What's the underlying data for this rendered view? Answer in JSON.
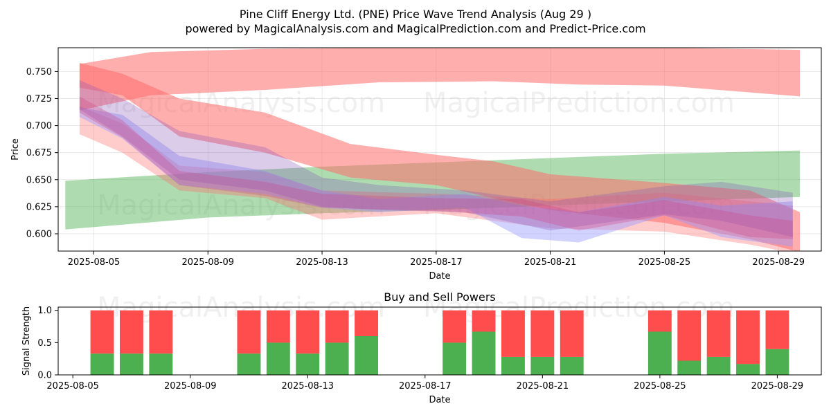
{
  "figure": {
    "title": "Pine Cliff Energy Ltd. (PNE) Price Wave Trend Analysis (Aug 29 )",
    "subtitle": "powered by MagicalAnalysis.com and MagicalPrediction.com and Predict-Price.com",
    "watermarks": [
      "MagicalAnalysis.com",
      "MagicalPrediction.com"
    ]
  },
  "chart_data": [
    {
      "type": "area",
      "name": "price-wave-trend",
      "xlabel": "Date",
      "ylabel": "Price",
      "ylim": [
        0.584,
        0.772
      ],
      "xlim": [
        "2025-08-03T18:00",
        "2025-08-30T12:00"
      ],
      "grid": true,
      "x_ticks": [
        "2025-08-05",
        "2025-08-09",
        "2025-08-13",
        "2025-08-17",
        "2025-08-21",
        "2025-08-25",
        "2025-08-29"
      ],
      "y_ticks": [
        0.6,
        0.625,
        0.65,
        0.675,
        0.7,
        0.725,
        0.75
      ],
      "y_tick_labels": [
        "0.600",
        "0.625",
        "0.650",
        "0.675",
        "0.700",
        "0.725",
        "0.750"
      ],
      "bands": [
        {
          "color": "#ff6b6b",
          "opacity": 0.55,
          "dates": [
            "2025-08-04T12:00",
            "2025-08-07",
            "2025-08-11",
            "2025-08-15",
            "2025-08-19",
            "2025-08-22",
            "2025-08-25",
            "2025-08-29T18:00"
          ],
          "upper": [
            0.757,
            0.768,
            0.771,
            0.772,
            0.772,
            0.772,
            0.772,
            0.77
          ],
          "lower": [
            0.714,
            0.728,
            0.733,
            0.74,
            0.741,
            0.738,
            0.737,
            0.727
          ]
        },
        {
          "color": "#4caf50",
          "opacity": 0.45,
          "dates": [
            "2025-08-04",
            "2025-08-09",
            "2025-08-13",
            "2025-08-17",
            "2025-08-21",
            "2025-08-25",
            "2025-08-29T18:00"
          ],
          "upper": [
            0.649,
            0.657,
            0.662,
            0.666,
            0.67,
            0.674,
            0.677
          ],
          "lower": [
            0.604,
            0.615,
            0.619,
            0.622,
            0.626,
            0.63,
            0.634
          ]
        },
        {
          "color": "#ff6b6b",
          "opacity": 0.55,
          "dates": [
            "2025-08-04T12:00",
            "2025-08-06",
            "2025-08-08",
            "2025-08-11",
            "2025-08-14",
            "2025-08-17",
            "2025-08-19",
            "2025-08-21",
            "2025-08-25",
            "2025-08-28",
            "2025-08-29T18:00"
          ],
          "upper": [
            0.758,
            0.748,
            0.725,
            0.712,
            0.683,
            0.673,
            0.667,
            0.655,
            0.647,
            0.64,
            0.62
          ],
          "lower": [
            0.735,
            0.728,
            0.69,
            0.675,
            0.652,
            0.645,
            0.633,
            0.622,
            0.61,
            0.595,
            0.583
          ]
        },
        {
          "color": "#ff6b6b",
          "opacity": 0.35,
          "dates": [
            "2025-08-04T12:00",
            "2025-08-06",
            "2025-08-08",
            "2025-08-11",
            "2025-08-13",
            "2025-08-17",
            "2025-08-21",
            "2025-08-25",
            "2025-08-28",
            "2025-08-29T12:00"
          ],
          "upper": [
            0.718,
            0.702,
            0.663,
            0.657,
            0.64,
            0.637,
            0.632,
            0.638,
            0.63,
            0.626
          ],
          "lower": [
            0.692,
            0.675,
            0.64,
            0.633,
            0.613,
            0.619,
            0.605,
            0.602,
            0.59,
            0.582
          ]
        },
        {
          "color": "#9c9cff",
          "opacity": 0.45,
          "dates": [
            "2025-08-04T12:00",
            "2025-08-06",
            "2025-08-08",
            "2025-08-11",
            "2025-08-13",
            "2025-08-15",
            "2025-08-18",
            "2025-08-20",
            "2025-08-22",
            "2025-08-25",
            "2025-08-27",
            "2025-08-29T12:00"
          ],
          "upper": [
            0.717,
            0.71,
            0.672,
            0.658,
            0.64,
            0.632,
            0.637,
            0.626,
            0.62,
            0.634,
            0.626,
            0.63
          ],
          "lower": [
            0.708,
            0.688,
            0.645,
            0.637,
            0.624,
            0.62,
            0.624,
            0.596,
            0.592,
            0.617,
            0.597,
            0.588
          ]
        },
        {
          "color": "#8855bb",
          "opacity": 0.3,
          "dates": [
            "2025-08-04T12:00",
            "2025-08-06",
            "2025-08-08",
            "2025-08-11",
            "2025-08-13",
            "2025-08-15",
            "2025-08-18",
            "2025-08-21",
            "2025-08-25",
            "2025-08-27",
            "2025-08-29T12:00"
          ],
          "upper": [
            0.742,
            0.725,
            0.695,
            0.68,
            0.652,
            0.645,
            0.64,
            0.63,
            0.644,
            0.648,
            0.638
          ],
          "lower": [
            0.715,
            0.69,
            0.65,
            0.64,
            0.625,
            0.622,
            0.62,
            0.603,
            0.618,
            0.612,
            0.597
          ]
        },
        {
          "color": "#d04080",
          "opacity": 0.3,
          "dates": [
            "2025-08-04T12:00",
            "2025-08-06",
            "2025-08-08",
            "2025-08-11",
            "2025-08-13",
            "2025-08-17",
            "2025-08-20",
            "2025-08-22",
            "2025-08-25",
            "2025-08-28",
            "2025-08-29T12:00"
          ],
          "upper": [
            0.727,
            0.705,
            0.658,
            0.648,
            0.637,
            0.633,
            0.632,
            0.62,
            0.631,
            0.617,
            0.612
          ],
          "lower": [
            0.712,
            0.689,
            0.645,
            0.635,
            0.624,
            0.621,
            0.616,
            0.603,
            0.617,
            0.597,
            0.595
          ]
        }
      ]
    },
    {
      "type": "bar",
      "name": "buy-sell-powers",
      "title": "Buy and Sell Powers",
      "xlabel": "Date",
      "ylabel": "Signal Strength",
      "ylim": [
        0,
        1.05
      ],
      "xlim": [
        "2025-08-04T12:00",
        "2025-08-30T12:00"
      ],
      "x_ticks": [
        "2025-08-05",
        "2025-08-09",
        "2025-08-13",
        "2025-08-17",
        "2025-08-21",
        "2025-08-25",
        "2025-08-29"
      ],
      "y_ticks": [
        0.0,
        0.5,
        1.0
      ],
      "y_tick_labels": [
        "0.0",
        "0.5",
        "1.0"
      ],
      "series_colors": {
        "buy": "#4caf50",
        "sell": "#ff4c4c"
      },
      "dates": [
        "2025-08-06",
        "2025-08-07",
        "2025-08-08",
        "2025-08-11",
        "2025-08-12",
        "2025-08-13",
        "2025-08-14",
        "2025-08-15",
        "2025-08-18",
        "2025-08-19",
        "2025-08-20",
        "2025-08-21",
        "2025-08-22",
        "2025-08-25",
        "2025-08-26",
        "2025-08-27",
        "2025-08-28",
        "2025-08-29"
      ],
      "buy": [
        0.33,
        0.33,
        0.33,
        0.33,
        0.5,
        0.33,
        0.5,
        0.6,
        0.5,
        0.67,
        0.28,
        0.28,
        0.28,
        0.67,
        0.22,
        0.28,
        0.17,
        0.4
      ],
      "sell": [
        0.67,
        0.67,
        0.67,
        0.67,
        0.5,
        0.67,
        0.5,
        0.4,
        0.5,
        0.33,
        0.72,
        0.72,
        0.72,
        0.33,
        0.78,
        0.72,
        0.83,
        0.6
      ]
    }
  ]
}
